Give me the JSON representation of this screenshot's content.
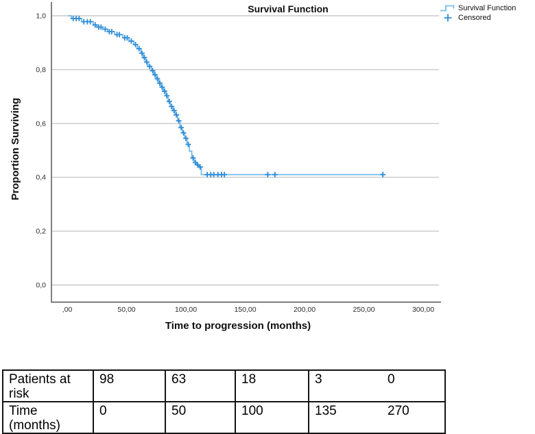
{
  "chart": {
    "colors": {
      "curve": "#79bde8",
      "censor": "#2f8cd6",
      "grid": "#c8c8c8",
      "axis": "#7f7f7f",
      "tick_text": "#2b2b2b"
    }
  },
  "chart_data": {
    "type": "line",
    "subtype": "kaplan_meier_step",
    "title": "Survival Function",
    "xlabel": "Time to progression (months)",
    "ylabel": "Proportion Surviving",
    "xlim": [
      0,
      300
    ],
    "ylim": [
      0.0,
      1.0
    ],
    "x_ticks": [
      0,
      50,
      100,
      150,
      200,
      250,
      300
    ],
    "x_tick_labels": [
      ",00",
      "50,00",
      "100,00",
      "150,00",
      "200,00",
      "250,00",
      "300,00"
    ],
    "y_ticks": [
      0.0,
      0.2,
      0.4,
      0.6,
      0.8,
      1.0
    ],
    "y_tick_labels": [
      "0,0",
      "0,2",
      "0,4",
      "0,6",
      "0,8",
      "1,0"
    ],
    "grid": "horizontal",
    "legend_position": "top-right",
    "series": [
      {
        "name": "Survival Function",
        "color": "#79bde8",
        "points": [
          [
            0.5,
            1.0
          ],
          [
            3.5,
            0.99
          ],
          [
            12,
            0.978
          ],
          [
            22,
            0.966
          ],
          [
            25,
            0.958
          ],
          [
            30,
            0.95
          ],
          [
            34,
            0.941
          ],
          [
            40,
            0.93
          ],
          [
            47,
            0.918
          ],
          [
            52,
            0.906
          ],
          [
            56,
            0.893
          ],
          [
            59,
            0.878
          ],
          [
            62,
            0.861
          ],
          [
            64,
            0.845
          ],
          [
            66,
            0.828
          ],
          [
            68,
            0.812
          ],
          [
            71,
            0.796
          ],
          [
            73,
            0.781
          ],
          [
            75,
            0.766
          ],
          [
            77,
            0.75
          ],
          [
            79,
            0.735
          ],
          [
            81,
            0.72
          ],
          [
            83,
            0.703
          ],
          [
            85,
            0.682
          ],
          [
            87,
            0.663
          ],
          [
            89,
            0.648
          ],
          [
            91,
            0.632
          ],
          [
            93,
            0.61
          ],
          [
            95,
            0.585
          ],
          [
            97,
            0.565
          ],
          [
            99,
            0.545
          ],
          [
            101,
            0.522
          ],
          [
            103,
            0.497
          ],
          [
            105,
            0.472
          ],
          [
            107,
            0.455
          ],
          [
            109,
            0.446
          ],
          [
            111,
            0.438
          ],
          [
            113,
            0.41
          ],
          [
            266,
            0.41
          ]
        ]
      }
    ],
    "censored": {
      "name": "Censored",
      "color": "#2f8cd6",
      "marker": "plus",
      "points": [
        [
          5,
          0.99
        ],
        [
          7.5,
          0.99
        ],
        [
          10,
          0.99
        ],
        [
          14,
          0.978
        ],
        [
          17,
          0.978
        ],
        [
          19.5,
          0.978
        ],
        [
          23.5,
          0.966
        ],
        [
          26.5,
          0.958
        ],
        [
          28.5,
          0.958
        ],
        [
          32,
          0.95
        ],
        [
          35.5,
          0.941
        ],
        [
          37.5,
          0.941
        ],
        [
          42,
          0.93
        ],
        [
          44,
          0.93
        ],
        [
          48.5,
          0.918
        ],
        [
          50.5,
          0.918
        ],
        [
          54,
          0.906
        ],
        [
          57.5,
          0.893
        ],
        [
          60.5,
          0.878
        ],
        [
          63,
          0.861
        ],
        [
          65,
          0.845
        ],
        [
          67,
          0.828
        ],
        [
          69.5,
          0.812
        ],
        [
          72,
          0.796
        ],
        [
          74,
          0.781
        ],
        [
          76,
          0.766
        ],
        [
          78,
          0.75
        ],
        [
          80,
          0.735
        ],
        [
          82,
          0.72
        ],
        [
          84,
          0.703
        ],
        [
          86,
          0.682
        ],
        [
          88,
          0.663
        ],
        [
          90,
          0.648
        ],
        [
          92,
          0.632
        ],
        [
          94,
          0.61
        ],
        [
          96,
          0.585
        ],
        [
          98,
          0.565
        ],
        [
          100,
          0.545
        ],
        [
          102,
          0.522
        ],
        [
          106,
          0.472
        ],
        [
          108,
          0.455
        ],
        [
          110,
          0.446
        ],
        [
          112,
          0.438
        ],
        [
          118,
          0.41
        ],
        [
          121,
          0.41
        ],
        [
          123.5,
          0.41
        ],
        [
          127,
          0.41
        ],
        [
          130,
          0.41
        ],
        [
          132.5,
          0.41
        ],
        [
          169,
          0.41
        ],
        [
          175,
          0.41
        ],
        [
          266,
          0.41
        ]
      ]
    }
  },
  "risk_table": {
    "rows": [
      {
        "label": "Patients at risk",
        "values": [
          "98",
          "63",
          "18",
          "3",
          "0"
        ]
      },
      {
        "label": "Time (months)",
        "values": [
          "0",
          "50",
          "100",
          "135",
          "270"
        ]
      }
    ]
  }
}
